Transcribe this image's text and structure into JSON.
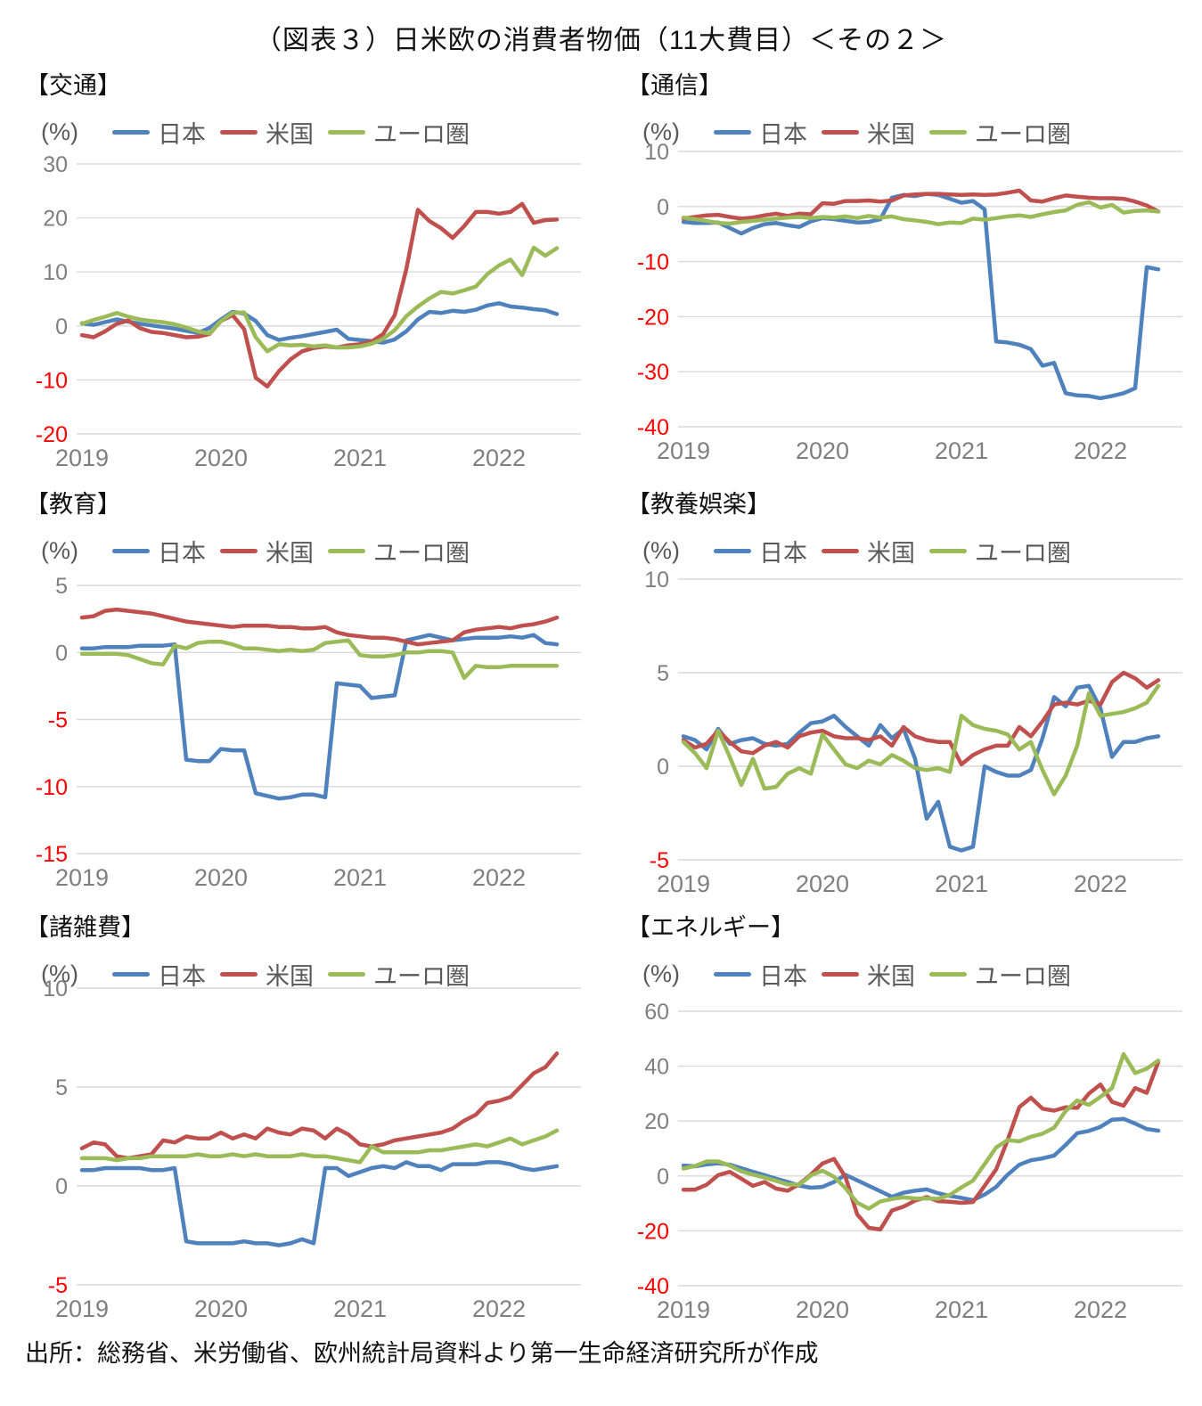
{
  "title": "（図表３）日米欧の消費者物価（11大費目）＜その２＞",
  "source": "出所：総務省、米労働省、欧州統計局資料より第一生命経済研究所が作成",
  "pct_label": "(%)",
  "legend": {
    "japan": "日本",
    "us": "米国",
    "euro": "ユーロ圏"
  },
  "colors": {
    "japan": "#4F81BD",
    "us": "#C0504D",
    "euro": "#9BBB59",
    "grid": "#D9D9D9",
    "tick": "#7F7F7F",
    "tick_negative": "#FF0000"
  },
  "x_ticks": [
    "2019",
    "2020",
    "2021",
    "2022"
  ],
  "chart_data": [
    {
      "type": "line",
      "title": "【交通】",
      "ylabel": "(%)",
      "ylim": [
        -20,
        30
      ],
      "y_ticks": [
        30,
        20,
        10,
        0,
        -10,
        -20
      ],
      "x_range": "2019-01 to 2022-06 (monthly)",
      "series": [
        {
          "name": "日本",
          "color_key": "japan",
          "values": [
            0.5,
            0.2,
            0.7,
            1.2,
            0.8,
            0.4,
            0.1,
            -0.2,
            -0.5,
            -0.9,
            -1.3,
            -0.4,
            1.2,
            2.6,
            2.3,
            0.9,
            -1.7,
            -2.6,
            -2.2,
            -1.9,
            -1.5,
            -1.1,
            -0.7,
            -2.4,
            -2.6,
            -2.8,
            -3.1,
            -2.5,
            -1.0,
            1.2,
            2.6,
            2.4,
            2.8,
            2.6,
            3.0,
            3.8,
            4.2,
            3.6,
            3.4,
            3.1,
            2.9,
            2.2
          ]
        },
        {
          "name": "米国",
          "color_key": "us",
          "values": [
            -1.7,
            -2.1,
            -1.0,
            0.4,
            1.0,
            -0.4,
            -1.1,
            -1.3,
            -1.7,
            -2.1,
            -2.0,
            -1.5,
            0.9,
            2.0,
            -0.6,
            -9.6,
            -11.2,
            -8.4,
            -6.2,
            -4.7,
            -4.1,
            -3.8,
            -4.0,
            -3.6,
            -3.4,
            -2.9,
            -1.5,
            2.0,
            10.5,
            21.5,
            19.4,
            18.1,
            16.3,
            18.5,
            21.1,
            21.1,
            20.8,
            21.1,
            22.6,
            19.1,
            19.6,
            19.7
          ]
        },
        {
          "name": "ユーロ圏",
          "color_key": "euro",
          "values": [
            0.4,
            1.1,
            1.7,
            2.4,
            1.7,
            1.2,
            0.9,
            0.7,
            0.3,
            -0.3,
            -1.0,
            -1.4,
            0.9,
            2.4,
            2.5,
            -2.1,
            -4.7,
            -3.4,
            -3.6,
            -3.5,
            -3.8,
            -3.6,
            -4.0,
            -4.0,
            -3.8,
            -3.3,
            -2.4,
            -0.8,
            1.8,
            3.6,
            5.1,
            6.3,
            6.0,
            6.6,
            7.3,
            9.6,
            11.2,
            12.3,
            9.4,
            14.5,
            13.0,
            14.4
          ]
        }
      ]
    },
    {
      "type": "line",
      "title": "【通信】",
      "ylabel": "(%)",
      "ylim": [
        -40,
        10
      ],
      "y_ticks": [
        10,
        0,
        -10,
        -20,
        -30,
        -40
      ],
      "x_range": "2019-01 to 2022-06 (monthly)",
      "series": [
        {
          "name": "日本",
          "color_key": "japan",
          "values": [
            -2.8,
            -3.0,
            -3.0,
            -2.9,
            -3.9,
            -4.9,
            -3.9,
            -3.2,
            -3.0,
            -3.4,
            -3.7,
            -2.7,
            -2.1,
            -2.3,
            -2.6,
            -2.9,
            -2.8,
            -2.3,
            1.6,
            2.1,
            1.9,
            2.3,
            2.1,
            1.4,
            0.7,
            1.0,
            -0.5,
            -24.5,
            -24.7,
            -25.1,
            -25.9,
            -28.9,
            -28.4,
            -33.9,
            -34.3,
            -34.4,
            -34.8,
            -34.4,
            -33.9,
            -33.0,
            -11.0,
            -11.4
          ]
        },
        {
          "name": "米国",
          "color_key": "us",
          "values": [
            -2.2,
            -1.9,
            -1.6,
            -1.5,
            -1.9,
            -2.2,
            -2.0,
            -1.6,
            -1.3,
            -1.7,
            -1.3,
            -1.4,
            0.6,
            0.5,
            1.0,
            1.0,
            1.1,
            0.9,
            1.1,
            2.0,
            2.2,
            2.3,
            2.3,
            2.2,
            2.1,
            2.2,
            2.1,
            2.2,
            2.5,
            2.9,
            1.1,
            0.9,
            1.5,
            2.0,
            1.8,
            1.6,
            1.5,
            1.5,
            1.4,
            0.9,
            0.2,
            -0.9
          ]
        },
        {
          "name": "ユーロ圏",
          "color_key": "euro",
          "values": [
            -2.0,
            -2.3,
            -2.6,
            -3.0,
            -3.1,
            -2.8,
            -2.6,
            -2.4,
            -2.2,
            -2.0,
            -1.9,
            -2.1,
            -1.9,
            -2.0,
            -1.8,
            -2.1,
            -1.7,
            -2.0,
            -1.8,
            -2.3,
            -2.5,
            -2.8,
            -3.2,
            -2.9,
            -3.0,
            -2.2,
            -2.4,
            -2.1,
            -1.8,
            -1.6,
            -1.9,
            -1.4,
            -1.0,
            -0.7,
            0.3,
            0.8,
            -0.2,
            0.3,
            -1.1,
            -0.8,
            -0.7,
            -0.9
          ]
        }
      ]
    },
    {
      "type": "line",
      "title": "【教育】",
      "ylabel": "(%)",
      "ylim": [
        -15,
        5
      ],
      "y_ticks": [
        5,
        0,
        -5,
        -10,
        -15
      ],
      "x_range": "2019-01 to 2022-06 (monthly)",
      "series": [
        {
          "name": "日本",
          "color_key": "japan",
          "values": [
            0.3,
            0.3,
            0.4,
            0.4,
            0.4,
            0.5,
            0.5,
            0.5,
            0.6,
            -8.0,
            -8.1,
            -8.1,
            -7.2,
            -7.3,
            -7.3,
            -10.5,
            -10.7,
            -10.9,
            -10.8,
            -10.6,
            -10.6,
            -10.8,
            -2.3,
            -2.4,
            -2.5,
            -3.4,
            -3.3,
            -3.2,
            0.9,
            1.1,
            1.3,
            1.1,
            0.9,
            1.0,
            1.1,
            1.1,
            1.1,
            1.2,
            1.1,
            1.3,
            0.7,
            0.6
          ]
        },
        {
          "name": "米国",
          "color_key": "us",
          "values": [
            2.6,
            2.7,
            3.1,
            3.2,
            3.1,
            3.0,
            2.9,
            2.7,
            2.5,
            2.3,
            2.2,
            2.1,
            2.0,
            1.9,
            2.0,
            2.0,
            2.0,
            1.9,
            1.9,
            1.8,
            1.8,
            1.9,
            1.5,
            1.3,
            1.2,
            1.1,
            1.1,
            1.0,
            0.8,
            0.6,
            0.7,
            0.8,
            0.9,
            1.5,
            1.7,
            1.8,
            1.9,
            1.8,
            2.0,
            2.1,
            2.3,
            2.6
          ]
        },
        {
          "name": "ユーロ圏",
          "color_key": "euro",
          "values": [
            -0.1,
            -0.1,
            -0.1,
            -0.1,
            -0.2,
            -0.5,
            -0.8,
            -0.9,
            0.5,
            0.3,
            0.7,
            0.8,
            0.8,
            0.6,
            0.3,
            0.3,
            0.2,
            0.1,
            0.2,
            0.1,
            0.2,
            0.7,
            0.8,
            0.9,
            -0.2,
            -0.3,
            -0.3,
            -0.2,
            0.0,
            0.0,
            0.1,
            0.1,
            0.0,
            -1.9,
            -1.0,
            -1.1,
            -1.1,
            -1.0,
            -1.0,
            -1.0,
            -1.0,
            -1.0
          ]
        }
      ]
    },
    {
      "type": "line",
      "title": "【教養娯楽】",
      "ylabel": "(%)",
      "ylim": [
        -5,
        10
      ],
      "y_ticks": [
        10,
        5,
        0,
        -5
      ],
      "x_range": "2019-01 to 2022-06 (monthly)",
      "series": [
        {
          "name": "日本",
          "color_key": "japan",
          "values": [
            1.6,
            1.4,
            0.9,
            2.0,
            1.2,
            1.4,
            1.5,
            1.2,
            1.1,
            1.2,
            1.8,
            2.3,
            2.4,
            2.7,
            2.1,
            1.6,
            1.1,
            2.2,
            1.5,
            2.0,
            0.4,
            -2.8,
            -1.9,
            -4.3,
            -4.5,
            -4.3,
            0.0,
            -0.3,
            -0.5,
            -0.5,
            -0.2,
            1.5,
            3.7,
            3.2,
            4.2,
            4.3,
            3.1,
            0.5,
            1.3,
            1.3,
            1.5,
            1.6
          ]
        },
        {
          "name": "米国",
          "color_key": "us",
          "values": [
            1.4,
            1.0,
            1.2,
            1.9,
            1.3,
            0.8,
            0.7,
            1.1,
            1.3,
            1.0,
            1.6,
            1.8,
            1.9,
            1.6,
            1.5,
            1.5,
            1.4,
            1.6,
            1.1,
            2.1,
            1.6,
            1.4,
            1.3,
            1.3,
            0.1,
            0.6,
            0.9,
            1.1,
            1.1,
            2.1,
            1.6,
            2.4,
            3.3,
            3.4,
            3.3,
            3.5,
            3.3,
            4.5,
            5.0,
            4.7,
            4.2,
            4.6
          ]
        },
        {
          "name": "ユーロ圏",
          "color_key": "euro",
          "values": [
            1.3,
            0.7,
            -0.1,
            1.9,
            0.5,
            -1.0,
            0.4,
            -1.2,
            -1.1,
            -0.4,
            -0.1,
            -0.4,
            1.7,
            0.9,
            0.1,
            -0.1,
            0.3,
            0.1,
            0.6,
            0.3,
            -0.1,
            -0.2,
            -0.1,
            -0.3,
            2.7,
            2.2,
            2.0,
            1.9,
            1.7,
            0.9,
            1.3,
            -0.2,
            -1.5,
            -0.5,
            1.1,
            3.9,
            2.7,
            2.8,
            2.9,
            3.1,
            3.4,
            4.3
          ]
        }
      ]
    },
    {
      "type": "line",
      "title": "【諸雑費】",
      "ylabel": "(%)",
      "ylim": [
        -5,
        10
      ],
      "y_ticks": [
        10,
        5,
        0,
        -5
      ],
      "x_range": "2019-01 to 2022-06 (monthly)",
      "series": [
        {
          "name": "日本",
          "color_key": "japan",
          "values": [
            0.8,
            0.8,
            0.9,
            0.9,
            0.9,
            0.9,
            0.8,
            0.8,
            0.9,
            -2.8,
            -2.9,
            -2.9,
            -2.9,
            -2.9,
            -2.8,
            -2.9,
            -2.9,
            -3.0,
            -2.9,
            -2.7,
            -2.9,
            0.9,
            0.9,
            0.5,
            0.7,
            0.9,
            1.0,
            0.9,
            1.2,
            1.0,
            1.0,
            0.8,
            1.1,
            1.1,
            1.1,
            1.2,
            1.2,
            1.1,
            0.9,
            0.8,
            0.9,
            1.0
          ]
        },
        {
          "name": "米国",
          "color_key": "us",
          "values": [
            1.9,
            2.2,
            2.1,
            1.5,
            1.4,
            1.5,
            1.6,
            2.3,
            2.2,
            2.5,
            2.4,
            2.4,
            2.7,
            2.4,
            2.6,
            2.4,
            2.9,
            2.7,
            2.6,
            2.9,
            2.8,
            2.4,
            2.9,
            2.6,
            2.1,
            2.0,
            2.1,
            2.3,
            2.4,
            2.5,
            2.6,
            2.7,
            2.9,
            3.3,
            3.6,
            4.2,
            4.3,
            4.5,
            5.1,
            5.7,
            6.0,
            6.7
          ]
        },
        {
          "name": "ユーロ圏",
          "color_key": "euro",
          "values": [
            1.4,
            1.4,
            1.4,
            1.3,
            1.4,
            1.4,
            1.5,
            1.5,
            1.5,
            1.5,
            1.6,
            1.5,
            1.5,
            1.6,
            1.5,
            1.6,
            1.5,
            1.5,
            1.5,
            1.6,
            1.5,
            1.5,
            1.4,
            1.3,
            1.2,
            2.0,
            1.7,
            1.7,
            1.7,
            1.7,
            1.8,
            1.8,
            1.9,
            2.0,
            2.1,
            2.0,
            2.2,
            2.4,
            2.1,
            2.3,
            2.5,
            2.8
          ]
        }
      ]
    },
    {
      "type": "line",
      "title": "【エネルギー】",
      "ylabel": "(%)",
      "ylim": [
        -40,
        60
      ],
      "y_ticks": [
        60,
        40,
        20,
        0,
        -20,
        -40
      ],
      "x_range": "2019-01 to 2022-06 (monthly)",
      "series": [
        {
          "name": "日本",
          "color_key": "japan",
          "values": [
            3.8,
            3.5,
            4.2,
            4.6,
            4.1,
            2.8,
            1.5,
            0.3,
            -1.0,
            -2.2,
            -3.5,
            -4.3,
            -4.0,
            -2.2,
            0.4,
            -1.6,
            -3.6,
            -5.6,
            -7.6,
            -6.1,
            -5.4,
            -4.9,
            -6.3,
            -7.3,
            -8.0,
            -8.8,
            -6.8,
            -4.0,
            0.5,
            4.1,
            5.7,
            6.4,
            7.4,
            11.3,
            15.6,
            16.4,
            17.9,
            20.5,
            20.8,
            19.1,
            17.1,
            16.5
          ]
        },
        {
          "name": "米国",
          "color_key": "us",
          "values": [
            -5.0,
            -5.0,
            -3.2,
            0.3,
            1.5,
            -1.0,
            -3.6,
            -2.2,
            -4.6,
            -5.4,
            -3.0,
            0.5,
            4.5,
            6.2,
            -0.5,
            -14.0,
            -18.9,
            -19.5,
            -12.6,
            -11.2,
            -9.0,
            -7.7,
            -9.2,
            -9.4,
            -9.8,
            -9.5,
            -3.6,
            2.4,
            13.2,
            25.1,
            28.5,
            24.5,
            23.8,
            25.0,
            24.8,
            30.0,
            33.3,
            27.0,
            25.6,
            32.0,
            30.3,
            41.6
          ]
        },
        {
          "name": "ユーロ圏",
          "color_key": "euro",
          "values": [
            2.7,
            3.6,
            5.3,
            5.3,
            3.8,
            1.7,
            0.5,
            -0.6,
            -1.8,
            -3.1,
            -3.2,
            0.2,
            1.9,
            -0.3,
            -4.5,
            -9.7,
            -11.9,
            -9.3,
            -8.4,
            -7.8,
            -8.2,
            -8.2,
            -8.3,
            -6.9,
            -4.2,
            -1.7,
            4.3,
            10.4,
            13.1,
            12.6,
            14.3,
            15.4,
            17.6,
            23.7,
            27.5,
            25.9,
            28.8,
            32.0,
            44.4,
            37.5,
            39.1,
            42.0
          ]
        }
      ]
    }
  ]
}
